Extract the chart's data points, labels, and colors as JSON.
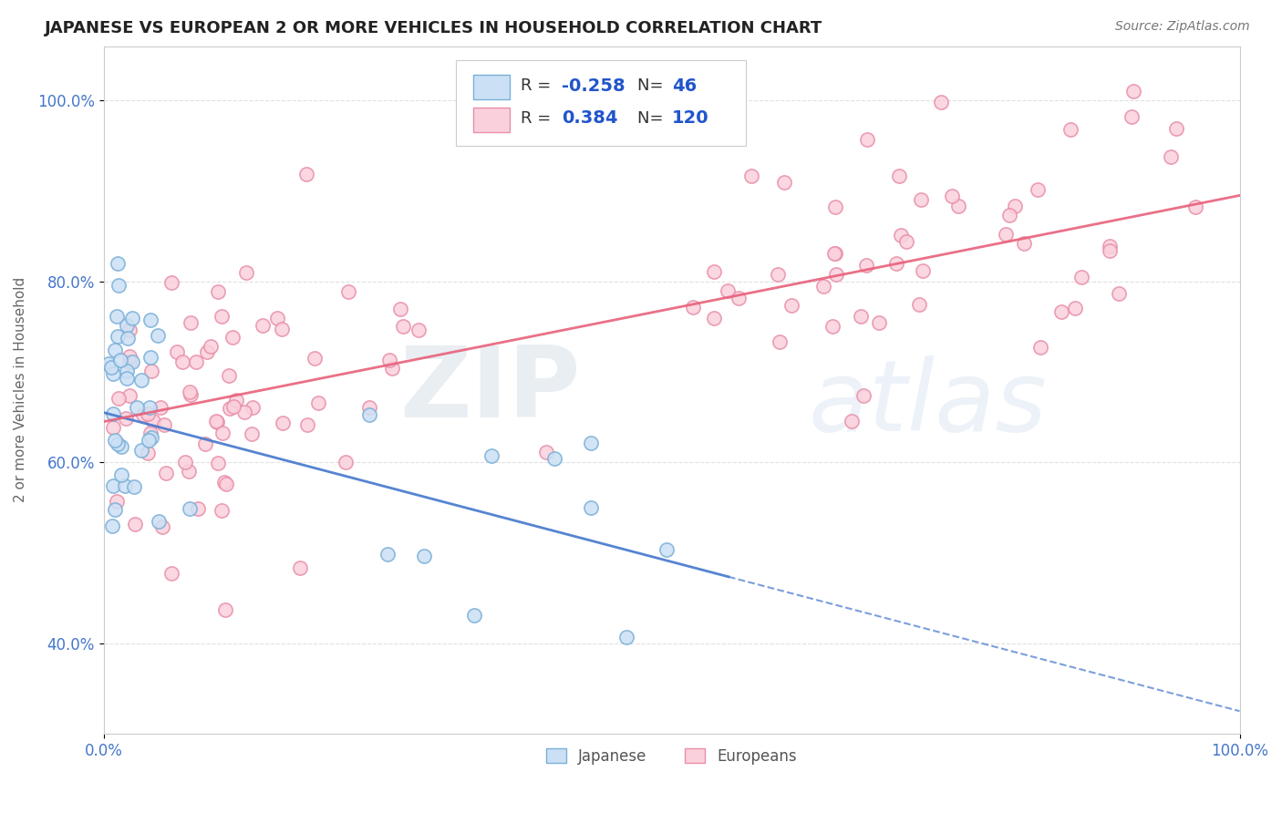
{
  "title": "JAPANESE VS EUROPEAN 2 OR MORE VEHICLES IN HOUSEHOLD CORRELATION CHART",
  "source_text": "Source: ZipAtlas.com",
  "ylabel": "2 or more Vehicles in Household",
  "xlim": [
    0.0,
    1.0
  ],
  "ylim": [
    0.3,
    1.06
  ],
  "xtick_labels": [
    "0.0%",
    "100.0%"
  ],
  "ytick_labels": [
    "40.0%",
    "60.0%",
    "80.0%",
    "100.0%"
  ],
  "ytick_positions": [
    0.4,
    0.6,
    0.8,
    1.0
  ],
  "legend_r_japanese": "-0.258",
  "legend_n_japanese": "46",
  "legend_r_european": "0.384",
  "legend_n_european": "120",
  "color_japanese_face": "#cce0f5",
  "color_japanese_edge": "#7ab0d8",
  "color_european_face": "#fad0dc",
  "color_european_edge": "#e890a8",
  "color_japanese_line": "#4477cc",
  "color_european_line": "#e8607a",
  "watermark_zip": "ZIP",
  "watermark_atlas": "atlas",
  "background_color": "#ffffff",
  "grid_color": "#cccccc",
  "title_color": "#222222",
  "axis_color": "#4477cc",
  "source_color": "#777777",
  "jp_line_start_y": 0.655,
  "jp_line_end_y": 0.325,
  "eu_line_start_y": 0.645,
  "eu_line_end_y": 0.895
}
